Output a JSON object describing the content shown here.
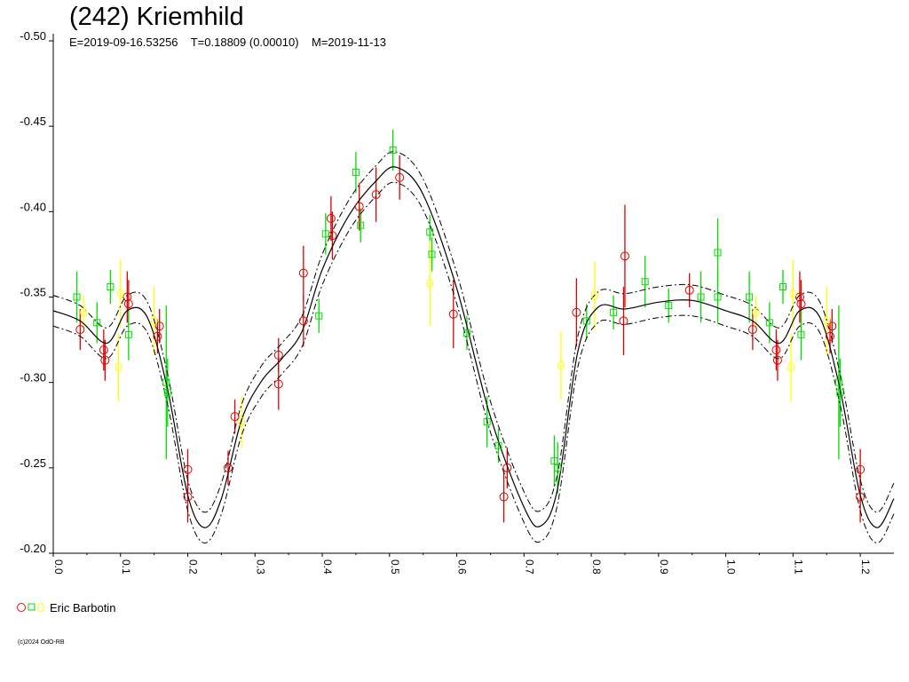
{
  "title": "(242) Kriemhild",
  "subtitle": "E=2019-09-16.53256    T=0.18809 (0.00010)    M=2019-11-13",
  "copyright": "(c)2024 OdO-RB",
  "legend": {
    "observer": "Eric Barbotin",
    "colors": [
      "#ff0000",
      "#00dd00",
      "#ffff00"
    ],
    "symbols": [
      "circle-icon",
      "square-icon",
      "diamond-icon"
    ]
  },
  "colors": {
    "red": "#e00000",
    "green": "#00dd00",
    "yellow": "#ffff00",
    "curve": "#000000"
  },
  "chart_data": {
    "type": "scatter",
    "xlabel": "",
    "ylabel": "",
    "xlim": [
      0.0,
      1.25
    ],
    "ylim": [
      -0.5,
      -0.2
    ],
    "y_inverted": true,
    "grid": false,
    "y_ticks": [
      -0.5,
      -0.45,
      -0.4,
      -0.35,
      -0.3,
      -0.25,
      -0.2
    ],
    "y_tick_labels": [
      "-0.50",
      "-0.45",
      "-0.40",
      "-0.35",
      "-0.30",
      "-0.25",
      "-0.20"
    ],
    "x_ticks": [
      0.0,
      0.1,
      0.2,
      0.3,
      0.4,
      0.5,
      0.6,
      0.7,
      0.8,
      0.9,
      1.0,
      1.1,
      1.2
    ],
    "x_tick_labels": [
      "0.0",
      "0.1",
      "0.2",
      "0.3",
      "0.4",
      "0.5",
      "0.6",
      "0.7",
      "0.8",
      "0.9",
      "1.0",
      "1.1",
      "1.2"
    ],
    "fit_curve": {
      "phase": [
        0.0,
        0.04,
        0.08,
        0.11,
        0.14,
        0.17,
        0.2,
        0.225,
        0.25,
        0.28,
        0.31,
        0.34,
        0.37,
        0.4,
        0.44,
        0.48,
        0.51,
        0.55,
        0.6,
        0.65,
        0.7,
        0.725,
        0.75,
        0.78,
        0.81,
        0.85,
        0.9,
        0.95,
        1.0,
        1.04,
        1.08,
        1.11,
        1.14,
        1.17,
        1.2,
        1.225,
        1.25
      ],
      "mag": [
        -0.342,
        -0.336,
        -0.323,
        -0.342,
        -0.338,
        -0.296,
        -0.234,
        -0.215,
        -0.232,
        -0.278,
        -0.301,
        -0.314,
        -0.33,
        -0.366,
        -0.398,
        -0.418,
        -0.426,
        -0.41,
        -0.355,
        -0.28,
        -0.227,
        -0.216,
        -0.238,
        -0.318,
        -0.344,
        -0.343,
        -0.347,
        -0.348,
        -0.342,
        -0.336,
        -0.323,
        -0.342,
        -0.338,
        -0.296,
        -0.234,
        -0.215,
        -0.232
      ],
      "envelope": 0.009
    },
    "series": [
      {
        "color": "red",
        "marker": "circle",
        "points": [
          [
            0.04,
            -0.331,
            0.012
          ],
          [
            0.075,
            -0.319,
            0.012
          ],
          [
            0.077,
            -0.313,
            0.012
          ],
          [
            0.11,
            -0.35,
            0.015
          ],
          [
            0.112,
            -0.346,
            0.014
          ],
          [
            0.155,
            -0.327,
            0.01
          ],
          [
            0.158,
            -0.333,
            0.01
          ],
          [
            0.2,
            -0.249,
            0.012
          ],
          [
            0.2,
            -0.233,
            0.015
          ],
          [
            0.26,
            -0.25,
            0.01
          ],
          [
            0.27,
            -0.28,
            0.01
          ],
          [
            0.335,
            -0.316,
            0.01
          ],
          [
            0.335,
            -0.299,
            0.015
          ],
          [
            0.372,
            -0.336,
            0.015
          ],
          [
            0.372,
            -0.364,
            0.016
          ],
          [
            0.413,
            -0.396,
            0.013
          ],
          [
            0.415,
            -0.386,
            0.014
          ],
          [
            0.455,
            -0.403,
            0.014
          ],
          [
            0.48,
            -0.41,
            0.016
          ],
          [
            0.515,
            -0.42,
            0.013
          ],
          [
            0.595,
            -0.34,
            0.02
          ],
          [
            0.67,
            -0.233,
            0.015
          ],
          [
            0.675,
            -0.25,
            0.012
          ],
          [
            0.778,
            -0.341,
            0.02
          ],
          [
            0.848,
            -0.336,
            0.02
          ],
          [
            0.85,
            -0.374,
            0.03
          ],
          [
            0.946,
            -0.354,
            0.01
          ],
          [
            1.04,
            -0.331,
            0.012
          ],
          [
            1.075,
            -0.319,
            0.012
          ],
          [
            1.077,
            -0.313,
            0.012
          ],
          [
            1.11,
            -0.35,
            0.015
          ],
          [
            1.112,
            -0.346,
            0.014
          ],
          [
            1.155,
            -0.327,
            0.01
          ],
          [
            1.158,
            -0.333,
            0.01
          ],
          [
            1.2,
            -0.249,
            0.012
          ],
          [
            1.2,
            -0.233,
            0.015
          ]
        ]
      },
      {
        "color": "green",
        "marker": "square",
        "points": [
          [
            0.035,
            -0.35,
            0.015
          ],
          [
            0.065,
            -0.335,
            0.012
          ],
          [
            0.085,
            -0.356,
            0.01
          ],
          [
            0.112,
            -0.328,
            0.015
          ],
          [
            0.17,
            -0.294,
            0.02
          ],
          [
            0.168,
            -0.3,
            0.045
          ],
          [
            0.395,
            -0.339,
            0.01
          ],
          [
            0.405,
            -0.387,
            0.012
          ],
          [
            0.45,
            -0.423,
            0.012
          ],
          [
            0.457,
            -0.392,
            0.01
          ],
          [
            0.505,
            -0.436,
            0.012
          ],
          [
            0.56,
            -0.388,
            0.01
          ],
          [
            0.563,
            -0.375,
            0.01
          ],
          [
            0.615,
            -0.329,
            0.01
          ],
          [
            0.645,
            -0.277,
            0.015
          ],
          [
            0.662,
            -0.263,
            0.01
          ],
          [
            0.745,
            -0.254,
            0.015
          ],
          [
            0.75,
            -0.25,
            0.015
          ],
          [
            0.793,
            -0.336,
            0.01
          ],
          [
            0.833,
            -0.341,
            0.01
          ],
          [
            0.88,
            -0.359,
            0.015
          ],
          [
            0.915,
            -0.345,
            0.01
          ],
          [
            0.963,
            -0.35,
            0.015
          ],
          [
            0.988,
            -0.376,
            0.02
          ],
          [
            0.988,
            -0.35,
            0.015
          ],
          [
            1.035,
            -0.35,
            0.015
          ],
          [
            1.065,
            -0.335,
            0.012
          ],
          [
            1.085,
            -0.356,
            0.01
          ],
          [
            1.112,
            -0.328,
            0.015
          ],
          [
            1.17,
            -0.294,
            0.02
          ],
          [
            1.168,
            -0.3,
            0.045
          ]
        ]
      },
      {
        "color": "yellow",
        "marker": "diamond",
        "points": [
          [
            0.045,
            -0.341,
            0.01
          ],
          [
            0.097,
            -0.309,
            0.02
          ],
          [
            0.1,
            -0.352,
            0.02
          ],
          [
            0.15,
            -0.336,
            0.02
          ],
          [
            0.28,
            -0.277,
            0.015
          ],
          [
            0.56,
            -0.358,
            0.025
          ],
          [
            0.755,
            -0.31,
            0.02
          ],
          [
            0.805,
            -0.351,
            0.02
          ],
          [
            1.045,
            -0.341,
            0.01
          ],
          [
            1.097,
            -0.309,
            0.02
          ],
          [
            1.1,
            -0.352,
            0.02
          ],
          [
            1.15,
            -0.336,
            0.02
          ]
        ]
      }
    ]
  }
}
